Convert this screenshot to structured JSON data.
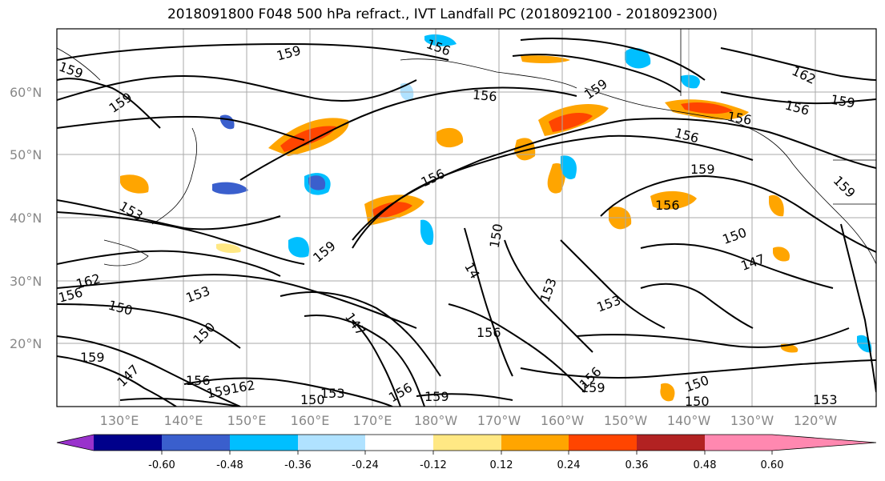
{
  "title": "2018091800 F048 500 hPa refract., IVT Landfall PC (2018092100 - 2018092300)",
  "lat_labels": [
    "60°N",
    "50°N",
    "40°N",
    "30°N",
    "20°N"
  ],
  "lon_labels": [
    "130°E",
    "140°E",
    "150°E",
    "160°E",
    "170°E",
    "180°W",
    "170°W",
    "160°W",
    "150°W",
    "140°W",
    "130°W",
    "120°W"
  ],
  "contour_labels": [
    "159",
    "159",
    "159",
    "156",
    "156",
    "159",
    "156",
    "162",
    "156",
    "159",
    "156",
    "159",
    "156",
    "159",
    "153",
    "150",
    "159",
    "150",
    "147",
    "162",
    "156",
    "150",
    "153",
    "150",
    "147",
    "153",
    "156",
    "159",
    "153",
    "147",
    "156",
    "156",
    "159",
    "150",
    "150",
    "153",
    "162",
    "159",
    "156",
    "159",
    "150",
    "153",
    "14",
    "156"
  ],
  "colorbar": {
    "tick_labels": [
      "-0.60",
      "-0.48",
      "-0.36",
      "-0.24",
      "-0.12",
      "0.12",
      "0.24",
      "0.36",
      "0.48",
      "0.60"
    ],
    "colors": [
      "#9932cc",
      "#00008b",
      "#3a5fcd",
      "#00bfff",
      "#b0e2ff",
      "#ffffff",
      "#ffe884",
      "#ffa500",
      "#ff4500",
      "#b22222",
      "#ff88b0"
    ]
  }
}
